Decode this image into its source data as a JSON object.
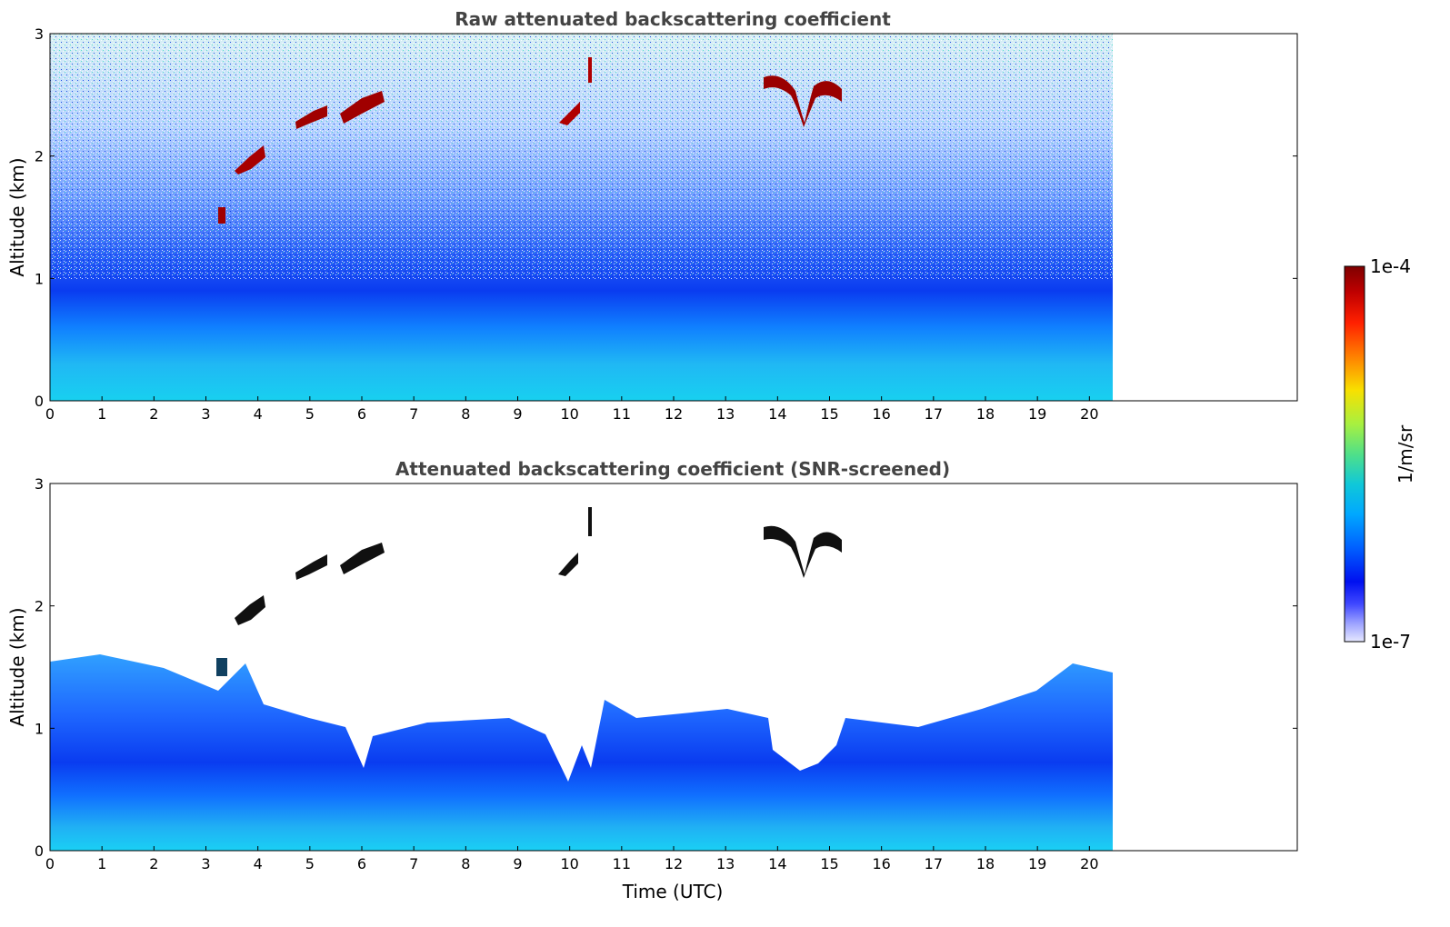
{
  "chart_data": [
    {
      "type": "heatmap",
      "title": "Raw attenuated backscattering coefficient",
      "xlabel": "",
      "ylabel": "Altitude (km)",
      "xlim": [
        0,
        24
      ],
      "ylim": [
        0,
        3
      ],
      "data_extent_x": [
        0,
        20.45
      ],
      "xticks": [
        0,
        1,
        2,
        3,
        4,
        5,
        6,
        7,
        8,
        9,
        10,
        11,
        12,
        13,
        14,
        15,
        16,
        17,
        18,
        19,
        20
      ],
      "yticks": [
        0,
        1,
        2,
        3
      ],
      "layers": [
        {
          "name": "boundary layer aerosol",
          "level": "moderate",
          "altitude_km": [
            0,
            1.0
          ]
        },
        {
          "name": "noisy free troposphere",
          "level": "low-to-moderate noise",
          "altitude_km": [
            1.0,
            3.0
          ]
        },
        {
          "name": "cloud",
          "time_utc": [
            3.5,
            4.1
          ],
          "altitude_km": [
            1.9,
            2.05
          ],
          "level": "high"
        },
        {
          "name": "cloud",
          "time_utc": [
            5.6,
            6.4
          ],
          "altitude_km": [
            2.3,
            2.5
          ],
          "level": "high"
        },
        {
          "name": "cloud",
          "time_utc": [
            13.8,
            15.3
          ],
          "altitude_km": [
            2.3,
            2.65
          ],
          "level": "high"
        }
      ]
    },
    {
      "type": "heatmap",
      "title": "Attenuated backscattering coefficient (SNR-screened)",
      "xlabel": "Time (UTC)",
      "ylabel": "Altitude (km)",
      "xlim": [
        0,
        24
      ],
      "ylim": [
        0,
        3
      ],
      "data_extent_x": [
        0,
        20.45
      ],
      "xticks": [
        0,
        1,
        2,
        3,
        4,
        5,
        6,
        7,
        8,
        9,
        10,
        11,
        12,
        13,
        14,
        15,
        16,
        17,
        18,
        19,
        20
      ],
      "yticks": [
        0,
        1,
        2,
        3
      ],
      "layers": [
        {
          "name": "screened boundary layer",
          "altitude_km": [
            0,
            1.3
          ]
        },
        {
          "name": "cloud",
          "time_utc": [
            13.8,
            15.3
          ],
          "altitude_km": [
            2.3,
            2.65
          ],
          "level": "saturated"
        }
      ]
    }
  ],
  "colorbar": {
    "label": "1/m/sr",
    "max_label": "1e-4",
    "min_label": "1e-7",
    "scale": "log",
    "colors": [
      "#7f0000",
      "#b00000",
      "#e00000",
      "#ff3000",
      "#ff7a00",
      "#ffc000",
      "#f7f000",
      "#b8f038",
      "#6ee870",
      "#2ad4b0",
      "#00c0f0",
      "#0090ff",
      "#1050ff",
      "#0000f0",
      "#5060ff",
      "#a0a8ff",
      "#e0e4ff"
    ]
  }
}
